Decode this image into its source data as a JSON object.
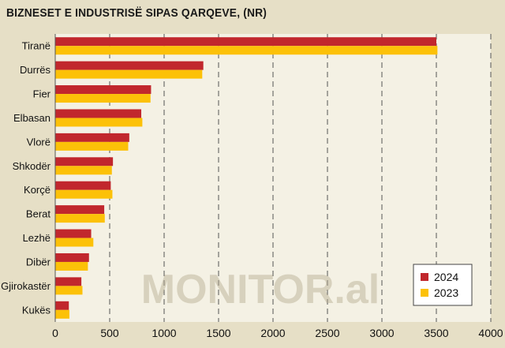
{
  "chart_data": {
    "type": "bar",
    "orientation": "horizontal",
    "title": "BIZNESET E INDUSTRISË SIPAS QARQEVE, (NR)",
    "categories": [
      "Tiranë",
      "Durrës",
      "Fier",
      "Elbasan",
      "Vlorë",
      "Shkodër",
      "Korçë",
      "Berat",
      "Lezhë",
      "Dibër",
      "Gjirokastër",
      "Kukës"
    ],
    "series": [
      {
        "name": "2024",
        "color": "#c1272d",
        "values": [
          3500,
          1360,
          880,
          790,
          680,
          530,
          510,
          450,
          330,
          310,
          240,
          125
        ]
      },
      {
        "name": "2023",
        "color": "#fcc108",
        "values": [
          3510,
          1350,
          875,
          800,
          670,
          520,
          525,
          455,
          350,
          300,
          250,
          130
        ]
      }
    ],
    "xlim": [
      0,
      4000
    ],
    "xticks": [
      0,
      500,
      1000,
      1500,
      2000,
      2500,
      3000,
      3500,
      4000
    ],
    "grid": "vertical dashed",
    "legend": "bottom-right",
    "watermark": "MONITOR.al"
  }
}
